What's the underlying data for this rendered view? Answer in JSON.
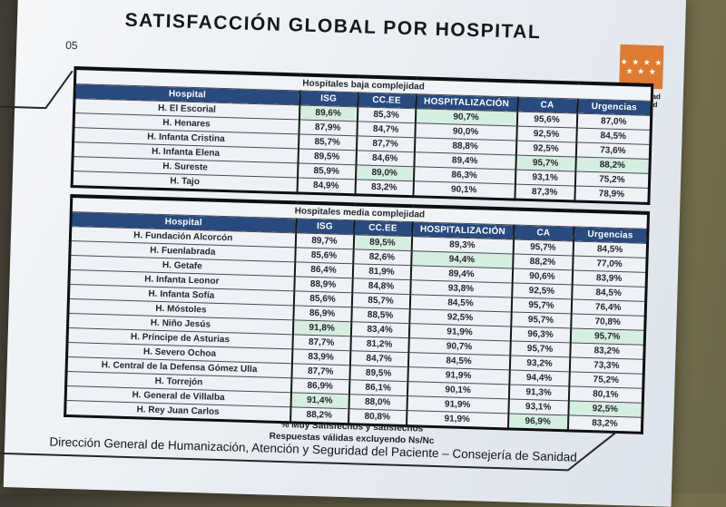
{
  "slide": {
    "page_number": "05",
    "title": "SATISFACCIÓN GLOBAL POR HOSPITAL",
    "logo": {
      "stars_top": "★ ★ ★ ★",
      "stars_bottom": "★ ★ ★",
      "line1": "Comunidad",
      "line2": "de Madrid"
    },
    "colors": {
      "header_blue": "#284A7E",
      "highlight_green": "#D5EEE0",
      "flag_orange": "#DD7B33"
    },
    "tables": [
      {
        "group_title": "Hospitales baja complejidad",
        "columns": [
          "Hospital",
          "ISG",
          "CC.EE",
          "HOSPITALIZACIÓN",
          "CA",
          "Urgencias"
        ],
        "rows": [
          {
            "hospital": "H. El Escorial",
            "values": [
              "89,6%",
              "85,3%",
              "90,7%",
              "95,6%",
              "87,0%"
            ],
            "hl": [
              0,
              2
            ]
          },
          {
            "hospital": "H. Henares",
            "values": [
              "87,9%",
              "84,7%",
              "90,0%",
              "92,5%",
              "84,5%"
            ],
            "hl": []
          },
          {
            "hospital": "H. Infanta Cristina",
            "values": [
              "85,7%",
              "87,7%",
              "88,8%",
              "92,5%",
              "73,6%"
            ],
            "hl": []
          },
          {
            "hospital": "H. Infanta Elena",
            "values": [
              "89,5%",
              "84,6%",
              "89,4%",
              "95,7%",
              "88,2%"
            ],
            "hl": [
              3,
              4
            ]
          },
          {
            "hospital": "H. Sureste",
            "values": [
              "85,9%",
              "89,0%",
              "86,3%",
              "93,1%",
              "75,2%"
            ],
            "hl": [
              1
            ]
          },
          {
            "hospital": "H. Tajo",
            "values": [
              "84,9%",
              "83,2%",
              "90,1%",
              "87,3%",
              "78,9%"
            ],
            "hl": []
          }
        ]
      },
      {
        "group_title": "Hospitales media complejidad",
        "columns": [
          "Hospital",
          "ISG",
          "CC.EE",
          "HOSPITALIZACIÓN",
          "CA",
          "Urgencias"
        ],
        "rows": [
          {
            "hospital": "H. Fundación Alcorcón",
            "values": [
              "89,7%",
              "89,5%",
              "89,3%",
              "95,7%",
              "84,5%"
            ],
            "hl": [
              1
            ]
          },
          {
            "hospital": "H. Fuenlabrada",
            "values": [
              "85,6%",
              "82,6%",
              "94,4%",
              "88,2%",
              "77,0%"
            ],
            "hl": [
              2
            ]
          },
          {
            "hospital": "H. Getafe",
            "values": [
              "86,4%",
              "81,9%",
              "89,4%",
              "90,6%",
              "83,9%"
            ],
            "hl": []
          },
          {
            "hospital": "H. Infanta Leonor",
            "values": [
              "88,9%",
              "84,8%",
              "93,8%",
              "92,5%",
              "84,5%"
            ],
            "hl": []
          },
          {
            "hospital": "H. Infanta Sofía",
            "values": [
              "85,6%",
              "85,7%",
              "84,5%",
              "95,7%",
              "76,4%"
            ],
            "hl": []
          },
          {
            "hospital": "H. Móstoles",
            "values": [
              "86,9%",
              "88,5%",
              "92,5%",
              "95,7%",
              "70,8%"
            ],
            "hl": []
          },
          {
            "hospital": "H. Niño Jesús",
            "values": [
              "91,8%",
              "83,4%",
              "91,9%",
              "96,3%",
              "95,7%"
            ],
            "hl": [
              0,
              4
            ]
          },
          {
            "hospital": "H. Príncipe de Asturias",
            "values": [
              "87,7%",
              "81,2%",
              "90,7%",
              "95,7%",
              "83,2%"
            ],
            "hl": []
          },
          {
            "hospital": "H. Severo Ochoa",
            "values": [
              "83,9%",
              "84,7%",
              "84,5%",
              "93,2%",
              "73,3%"
            ],
            "hl": []
          },
          {
            "hospital": "H. Central de la Defensa Gómez Ulla",
            "values": [
              "87,7%",
              "89,5%",
              "91,9%",
              "94,4%",
              "75,2%"
            ],
            "hl": []
          },
          {
            "hospital": "H. Torrejón",
            "values": [
              "86,9%",
              "86,1%",
              "90,1%",
              "91,3%",
              "80,1%"
            ],
            "hl": []
          },
          {
            "hospital": "H. General de Villalba",
            "values": [
              "91,4%",
              "88,0%",
              "91,9%",
              "93,1%",
              "92,5%"
            ],
            "hl": [
              0,
              4
            ]
          },
          {
            "hospital": "H. Rey Juan Carlos",
            "values": [
              "88,2%",
              "80,8%",
              "91,9%",
              "96,9%",
              "83,2%"
            ],
            "hl": [
              3
            ]
          }
        ]
      }
    ],
    "notes": [
      "% Muy Satisfechos y satisfechos",
      "Respuestas válidas excluyendo Ns/Nc"
    ],
    "footer": "Dirección General de Humanización, Atención y Seguridad del Paciente – Consejería de Sanidad"
  }
}
